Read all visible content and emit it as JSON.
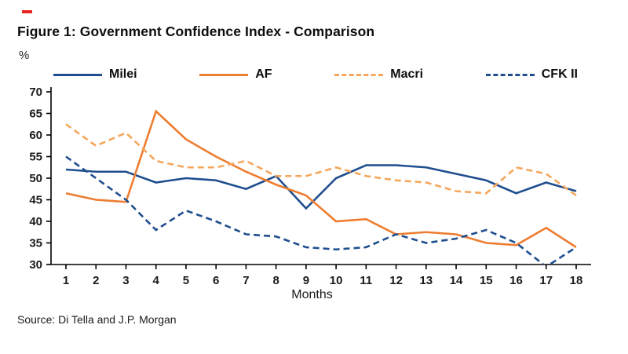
{
  "page": {
    "title": "Figure 1: Government Confidence Index - Comparison",
    "ylabel": "%",
    "xlabel": "Months",
    "source": "Source: Di Tella and J.P. Morgan",
    "accent_red": "#e8251f"
  },
  "chart_data": {
    "type": "line",
    "title": "Figure 1: Government Confidence Index - Comparison",
    "xlabel": "Months",
    "ylabel": "%",
    "x": [
      1,
      2,
      3,
      4,
      5,
      6,
      7,
      8,
      9,
      10,
      11,
      12,
      13,
      14,
      15,
      16,
      17,
      18
    ],
    "ylim": [
      30,
      70
    ],
    "ytick_step": 5,
    "grid": false,
    "legend_position": "top",
    "series": [
      {
        "name": "Milei",
        "color": "#1f4e8f",
        "dash": "solid",
        "values": [
          52,
          51.5,
          51.5,
          49,
          50,
          49.5,
          47.5,
          50.5,
          43,
          50,
          53,
          53,
          52.5,
          51,
          49.5,
          46.5,
          49,
          47
        ]
      },
      {
        "name": "AF",
        "color": "#ee7d30",
        "dash": "solid",
        "values": [
          46.5,
          45,
          44.5,
          65.5,
          59,
          55,
          51.5,
          48.5,
          46,
          40,
          40.5,
          37,
          37.5,
          37,
          35,
          34.5,
          38.5,
          34
        ]
      },
      {
        "name": "Macri",
        "color": "#f5a65b",
        "dash": "dashed",
        "values": [
          62.5,
          57.5,
          60.5,
          54,
          52.5,
          52.5,
          54,
          50.5,
          50.5,
          52.5,
          50.5,
          49.5,
          49,
          47,
          46.5,
          52.5,
          51,
          46
        ]
      },
      {
        "name": "CFK II",
        "color": "#1f4e8f",
        "dash": "dashed",
        "values": [
          55,
          50,
          45,
          38,
          42.5,
          40,
          37,
          36.5,
          34,
          33.5,
          34,
          37,
          35,
          36,
          38,
          35,
          29.5,
          34
        ]
      }
    ]
  }
}
